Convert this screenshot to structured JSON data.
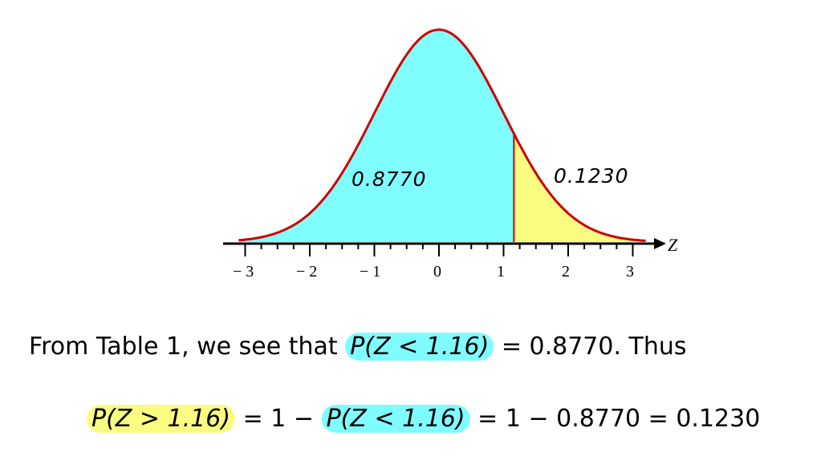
{
  "figure": {
    "axis_name": "Z",
    "tick_labels": [
      "− 3",
      "− 2",
      "− 1",
      "0",
      "1",
      "2",
      "3"
    ],
    "left_area_label": "0.8770",
    "right_area_label": "0.1230",
    "cut_z": 1.16,
    "colors": {
      "left_fill": "#80fdff",
      "right_fill": "#fbfc82",
      "curve": "#cc0000",
      "axis": "#000000"
    }
  },
  "text": {
    "line1_prefix": "From Table 1, we see that ",
    "line1_hl": "P(Z < 1.16)",
    "line1_suffix": " = 0.8770. Thus",
    "line2_hl1": "P(Z > 1.16)",
    "line2_mid": " = 1 − ",
    "line2_hl2": "P(Z < 1.16)",
    "line2_suffix": " = 1 − 0.8770 = 0.1230"
  }
}
